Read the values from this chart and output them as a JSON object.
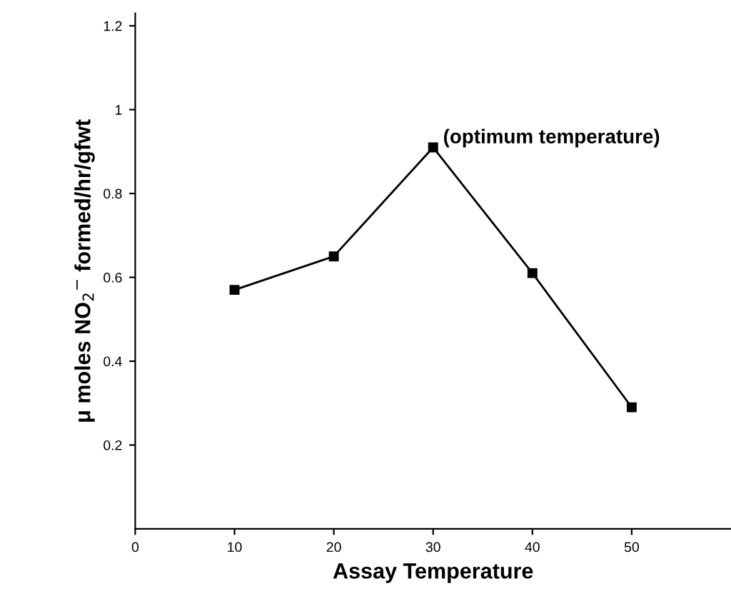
{
  "chart_data": {
    "type": "line",
    "xlabel": "Assay Temperature",
    "ylabel": "μ moles NO$_{2}$$^{−}$ formed/hr/gfwt",
    "x": [
      10,
      20,
      30,
      40,
      50
    ],
    "series": [
      {
        "color": "#000000",
        "values": [
          0.57,
          0.65,
          0.91,
          0.61,
          0.29
        ]
      }
    ],
    "xlim": [
      0,
      60
    ],
    "xticks": [
      0,
      10,
      20,
      30,
      40,
      50
    ],
    "ylim": [
      0,
      1.23
    ],
    "yticks": [
      0.2,
      0.4,
      0.6,
      0.8,
      1,
      1.2
    ],
    "marker": "square",
    "line_style": "solid",
    "grid": false,
    "legend": false,
    "annotations": [
      {
        "text": "(optimum temperature)",
        "x": 30,
        "y": 0.91
      }
    ]
  }
}
